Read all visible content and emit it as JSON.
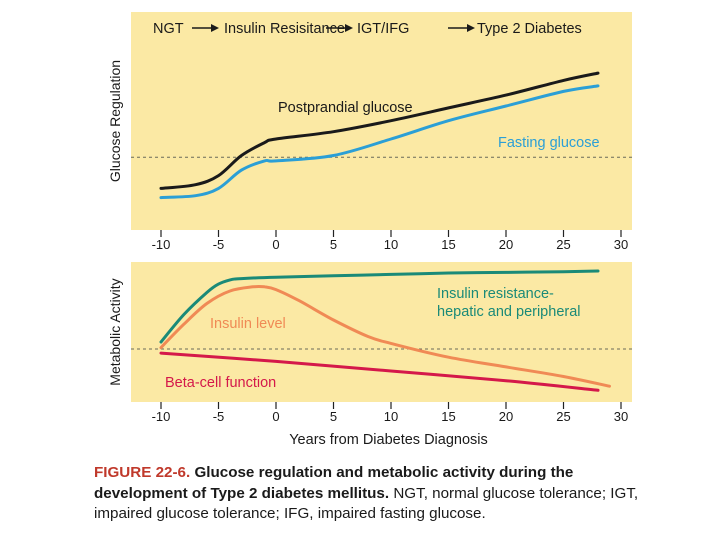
{
  "chart_data": [
    {
      "type": "line",
      "banner": [
        "NGT",
        "Insulin Resisitance",
        "IGT/IFG",
        "Type 2 Diabetes"
      ],
      "ylabel": "Glucose Regulation",
      "xlim": [
        -10,
        30
      ],
      "xticks": [
        -10,
        -5,
        0,
        5,
        10,
        15,
        20,
        25,
        30
      ],
      "ylim": [
        0,
        100
      ],
      "threshold": 37,
      "series": [
        {
          "name": "Postprandial glucose",
          "color": "#1a1a1a",
          "x": [
            -10,
            -7,
            -5,
            -3,
            -1,
            0,
            5,
            10,
            15,
            20,
            25,
            28
          ],
          "y": [
            20,
            22,
            27,
            38,
            45,
            47,
            51,
            57,
            64,
            71,
            79,
            83
          ]
        },
        {
          "name": "Fasting glucose",
          "color": "#2b9fd6",
          "x": [
            -10,
            -7,
            -5,
            -3,
            -1,
            0,
            5,
            10,
            15,
            20,
            25,
            28
          ],
          "y": [
            15,
            16,
            20,
            30,
            35,
            35,
            38,
            47,
            57,
            65,
            73,
            76
          ]
        }
      ]
    },
    {
      "type": "line",
      "ylabel": "Metabolic Activity",
      "xlabel": "Years from Diabetes Diagnosis",
      "xlim": [
        -10,
        30
      ],
      "xticks": [
        -10,
        -5,
        0,
        5,
        10,
        15,
        20,
        25,
        30
      ],
      "ylim": [
        0,
        100
      ],
      "threshold": 37,
      "series": [
        {
          "name": "Insulin resistance-hepatic and peripheral",
          "label_lines": [
            "Insulin resistance-",
            "hepatic and peripheral"
          ],
          "color": "#1a8a78",
          "x": [
            -10,
            -8,
            -6,
            -5,
            -4,
            -3,
            0,
            5,
            10,
            15,
            20,
            25,
            28
          ],
          "y": [
            42,
            62,
            78,
            84,
            87,
            88,
            89,
            90,
            91,
            92,
            92.5,
            93,
            93.5
          ]
        },
        {
          "name": "Insulin level",
          "color": "#f08a55",
          "x": [
            -10,
            -8,
            -6,
            -4,
            -2,
            -1,
            0,
            2,
            5,
            8,
            10,
            15,
            20,
            25,
            29
          ],
          "y": [
            38,
            55,
            70,
            79,
            82,
            82,
            80,
            72,
            58,
            46,
            41,
            31,
            24,
            17,
            10
          ]
        },
        {
          "name": "Beta-cell function",
          "color": "#d4184a",
          "x": [
            -10,
            0,
            10,
            20,
            28
          ],
          "y": [
            34,
            28,
            21,
            14,
            7
          ]
        }
      ]
    }
  ],
  "caption": {
    "label": "FIGURE 22-6.",
    "title": "Glucose regulation and metabolic activity during the development of Type 2 diabetes mellitus.",
    "body": "NGT, normal glucose tolerance; IGT, impaired glucose tolerance; IFG, impaired fasting glucose."
  }
}
